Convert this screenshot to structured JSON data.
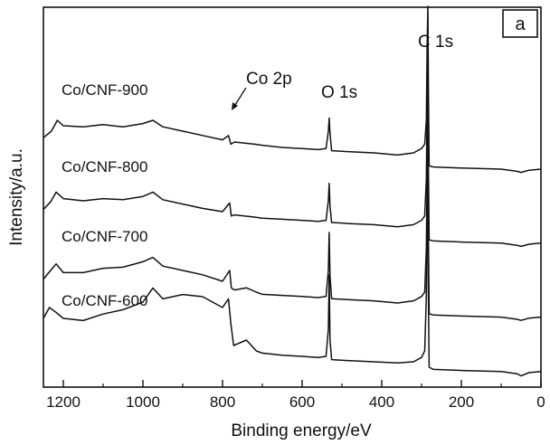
{
  "chart_data": {
    "type": "line",
    "panel_label": "a",
    "xlabel": "Binding energy/eV",
    "ylabel": "Intensity/a.u.",
    "xlim": [
      1250,
      0
    ],
    "x_reversed": true,
    "xticks": [
      1200,
      1000,
      800,
      600,
      400,
      200,
      0
    ],
    "yticks_shown": false,
    "annotations": [
      {
        "text": "C 1s",
        "x": 284
      },
      {
        "text": "O 1s",
        "x": 532
      },
      {
        "text": "Co 2p",
        "x": 780
      }
    ],
    "series": [
      {
        "name": "Co/CNF-900",
        "offset": 3,
        "points": [
          [
            1250,
            0.04
          ],
          [
            1230,
            0.1
          ],
          [
            1215,
            0.2
          ],
          [
            1200,
            0.15
          ],
          [
            1150,
            0.14
          ],
          [
            1100,
            0.16
          ],
          [
            1050,
            0.14
          ],
          [
            1000,
            0.17
          ],
          [
            975,
            0.2
          ],
          [
            950,
            0.14
          ],
          [
            900,
            0.1
          ],
          [
            850,
            0.06
          ],
          [
            800,
            0.02
          ],
          [
            785,
            0.06
          ],
          [
            779,
            -0.02
          ],
          [
            770,
            0.0
          ],
          [
            720,
            -0.02
          ],
          [
            700,
            -0.03
          ],
          [
            650,
            -0.05
          ],
          [
            600,
            -0.06
          ],
          [
            560,
            -0.07
          ],
          [
            540,
            -0.06
          ],
          [
            534,
            0.1
          ],
          [
            532,
            0.22
          ],
          [
            530,
            0.08
          ],
          [
            526,
            -0.08
          ],
          [
            480,
            -0.09
          ],
          [
            420,
            -0.1
          ],
          [
            360,
            -0.12
          ],
          [
            320,
            -0.1
          ],
          [
            300,
            -0.06
          ],
          [
            292,
            -0.02
          ],
          [
            288,
            0.2
          ],
          [
            286,
            0.9
          ],
          [
            284,
            1.25
          ],
          [
            283,
            0.6
          ],
          [
            281,
            -0.22
          ],
          [
            270,
            -0.23
          ],
          [
            200,
            -0.24
          ],
          [
            100,
            -0.25
          ],
          [
            60,
            -0.27
          ],
          [
            50,
            -0.28
          ],
          [
            30,
            -0.26
          ],
          [
            0,
            -0.25
          ]
        ]
      },
      {
        "name": "Co/CNF-800",
        "offset": 2,
        "points": [
          [
            1250,
            0.02
          ],
          [
            1232,
            0.09
          ],
          [
            1218,
            0.18
          ],
          [
            1200,
            0.12
          ],
          [
            1150,
            0.1
          ],
          [
            1100,
            0.12
          ],
          [
            1050,
            0.11
          ],
          [
            1000,
            0.14
          ],
          [
            975,
            0.18
          ],
          [
            950,
            0.11
          ],
          [
            900,
            0.07
          ],
          [
            850,
            0.03
          ],
          [
            800,
            0.0
          ],
          [
            782,
            0.08
          ],
          [
            778,
            -0.04
          ],
          [
            770,
            -0.03
          ],
          [
            720,
            -0.05
          ],
          [
            700,
            -0.06
          ],
          [
            650,
            -0.07
          ],
          [
            600,
            -0.08
          ],
          [
            560,
            -0.09
          ],
          [
            540,
            -0.08
          ],
          [
            534,
            0.1
          ],
          [
            532,
            0.26
          ],
          [
            530,
            0.05
          ],
          [
            526,
            -0.1
          ],
          [
            480,
            -0.11
          ],
          [
            420,
            -0.12
          ],
          [
            360,
            -0.14
          ],
          [
            320,
            -0.12
          ],
          [
            300,
            -0.08
          ],
          [
            292,
            -0.04
          ],
          [
            288,
            0.3
          ],
          [
            286,
            1.0
          ],
          [
            284,
            1.3
          ],
          [
            283,
            0.5
          ],
          [
            281,
            -0.26
          ],
          [
            270,
            -0.27
          ],
          [
            200,
            -0.28
          ],
          [
            100,
            -0.29
          ],
          [
            60,
            -0.31
          ],
          [
            50,
            -0.32
          ],
          [
            30,
            -0.3
          ],
          [
            0,
            -0.29
          ]
        ]
      },
      {
        "name": "Co/CNF-700",
        "offset": 1,
        "points": [
          [
            1250,
            0.02
          ],
          [
            1232,
            0.1
          ],
          [
            1218,
            0.16
          ],
          [
            1200,
            0.08
          ],
          [
            1150,
            0.08
          ],
          [
            1100,
            0.12
          ],
          [
            1050,
            0.13
          ],
          [
            1000,
            0.18
          ],
          [
            975,
            0.22
          ],
          [
            950,
            0.14
          ],
          [
            900,
            0.1
          ],
          [
            850,
            0.06
          ],
          [
            800,
            0.0
          ],
          [
            782,
            0.1
          ],
          [
            778,
            -0.06
          ],
          [
            770,
            -0.08
          ],
          [
            740,
            -0.06
          ],
          [
            715,
            -0.1
          ],
          [
            700,
            -0.12
          ],
          [
            650,
            -0.13
          ],
          [
            600,
            -0.14
          ],
          [
            560,
            -0.15
          ],
          [
            540,
            -0.14
          ],
          [
            534,
            0.1
          ],
          [
            532,
            0.45
          ],
          [
            530,
            0.05
          ],
          [
            526,
            -0.16
          ],
          [
            480,
            -0.17
          ],
          [
            420,
            -0.18
          ],
          [
            360,
            -0.2
          ],
          [
            320,
            -0.18
          ],
          [
            300,
            -0.14
          ],
          [
            292,
            -0.1
          ],
          [
            288,
            0.3
          ],
          [
            286,
            1.0
          ],
          [
            284,
            1.45
          ],
          [
            283,
            0.5
          ],
          [
            281,
            -0.3
          ],
          [
            270,
            -0.31
          ],
          [
            200,
            -0.32
          ],
          [
            100,
            -0.33
          ],
          [
            60,
            -0.35
          ],
          [
            50,
            -0.36
          ],
          [
            30,
            -0.34
          ],
          [
            0,
            -0.33
          ]
        ]
      },
      {
        "name": "Co/CNF-600",
        "offset": 0,
        "points": [
          [
            1250,
            0.3
          ],
          [
            1235,
            0.4
          ],
          [
            1220,
            0.36
          ],
          [
            1200,
            0.3
          ],
          [
            1150,
            0.28
          ],
          [
            1100,
            0.34
          ],
          [
            1050,
            0.38
          ],
          [
            1000,
            0.45
          ],
          [
            975,
            0.58
          ],
          [
            950,
            0.48
          ],
          [
            900,
            0.52
          ],
          [
            850,
            0.5
          ],
          [
            800,
            0.4
          ],
          [
            785,
            0.48
          ],
          [
            779,
            0.25
          ],
          [
            772,
            0.05
          ],
          [
            740,
            0.1
          ],
          [
            715,
            0.0
          ],
          [
            700,
            -0.02
          ],
          [
            650,
            -0.04
          ],
          [
            600,
            -0.05
          ],
          [
            560,
            -0.06
          ],
          [
            540,
            -0.05
          ],
          [
            534,
            0.2
          ],
          [
            532,
            0.7
          ],
          [
            530,
            0.1
          ],
          [
            526,
            -0.08
          ],
          [
            480,
            -0.09
          ],
          [
            420,
            -0.1
          ],
          [
            360,
            -0.11
          ],
          [
            320,
            -0.1
          ],
          [
            300,
            -0.06
          ],
          [
            292,
            0.0
          ],
          [
            288,
            0.5
          ],
          [
            286,
            1.2
          ],
          [
            284,
            1.6
          ],
          [
            283,
            0.6
          ],
          [
            281,
            -0.15
          ],
          [
            270,
            -0.17
          ],
          [
            200,
            -0.18
          ],
          [
            100,
            -0.19
          ],
          [
            60,
            -0.21
          ],
          [
            50,
            -0.23
          ],
          [
            30,
            -0.2
          ],
          [
            0,
            -0.19
          ]
        ]
      }
    ]
  }
}
